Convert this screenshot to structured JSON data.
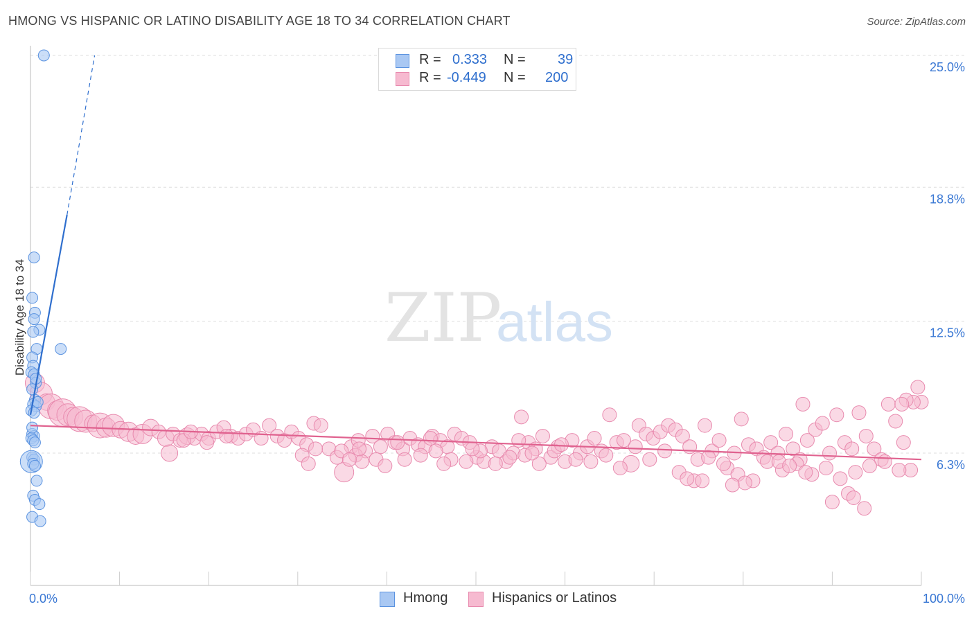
{
  "header": {
    "title": "HMONG VS HISPANIC OR LATINO DISABILITY AGE 18 TO 34 CORRELATION CHART",
    "source": "Source: ZipAtlas.com"
  },
  "legend": {
    "hmong": {
      "r_label": "R =",
      "r_value": "0.333",
      "n_label": "N =",
      "n_value": "39"
    },
    "hispanic": {
      "r_label": "R =",
      "r_value": "-0.449",
      "n_label": "N =",
      "n_value": "200"
    }
  },
  "bottom_legend": {
    "hmong": "Hmong",
    "hispanic": "Hispanics or Latinos"
  },
  "watermark": {
    "zip": "ZIP",
    "atlas": "atlas"
  },
  "colors": {
    "hmong_fill": "#a9c8f3",
    "hmong_stroke": "#5b93e0",
    "hmong_line": "#2f6fce",
    "hispanic_fill": "#f6bad0",
    "hispanic_stroke": "#e88aae",
    "hispanic_line": "#e0628f",
    "axis_label": "#3a78d4",
    "grid": "#dddddd"
  },
  "chart_data": {
    "type": "scatter",
    "title": "HMONG VS HISPANIC OR LATINO DISABILITY AGE 18 TO 34 CORRELATION CHART",
    "xlabel": "",
    "ylabel": "Disability Age 18 to 34",
    "xlim": [
      0,
      100
    ],
    "ylim": [
      0,
      26
    ],
    "x_tick_labels": [
      "0.0%",
      "100.0%"
    ],
    "y_ticks": [
      6.3,
      12.5,
      18.8,
      25.0
    ],
    "y_tick_labels": [
      "6.3%",
      "12.5%",
      "18.8%",
      "25.0%"
    ],
    "series": [
      {
        "name": "Hmong",
        "r": 0.333,
        "n": 39,
        "trend": {
          "solid": [
            [
              0,
              8.1
            ],
            [
              4.1,
              17.5
            ]
          ],
          "dashed": [
            [
              4.1,
              17.5
            ],
            [
              7.2,
              25.0
            ]
          ]
        },
        "points": [
          [
            1.5,
            25.0,
            8
          ],
          [
            0.4,
            15.5,
            8
          ],
          [
            0.2,
            13.6,
            8
          ],
          [
            0.5,
            12.9,
            8
          ],
          [
            0.4,
            12.6,
            8
          ],
          [
            1.0,
            12.1,
            8
          ],
          [
            0.3,
            12.0,
            8
          ],
          [
            3.4,
            11.2,
            8
          ],
          [
            0.7,
            11.2,
            8
          ],
          [
            0.2,
            10.8,
            8
          ],
          [
            0.3,
            10.4,
            8
          ],
          [
            0.1,
            10.1,
            8
          ],
          [
            0.4,
            10.0,
            8
          ],
          [
            0.6,
            9.6,
            8
          ],
          [
            0.2,
            9.3,
            8
          ],
          [
            0.5,
            8.8,
            8
          ],
          [
            0.3,
            8.6,
            8
          ],
          [
            0.6,
            8.5,
            8
          ],
          [
            0.1,
            8.3,
            8
          ],
          [
            0.4,
            8.2,
            8
          ],
          [
            0.2,
            7.2,
            8
          ],
          [
            0.4,
            7.1,
            8
          ],
          [
            0.1,
            7.0,
            8
          ],
          [
            0.3,
            6.9,
            8
          ],
          [
            0.5,
            6.8,
            8
          ],
          [
            0.2,
            6.1,
            8
          ],
          [
            0.4,
            6.0,
            8
          ],
          [
            0.1,
            5.9,
            16
          ],
          [
            0.3,
            5.8,
            8
          ],
          [
            0.5,
            5.7,
            8
          ],
          [
            0.7,
            5.0,
            8
          ],
          [
            0.3,
            4.3,
            8
          ],
          [
            0.5,
            4.1,
            8
          ],
          [
            1.0,
            3.9,
            8
          ],
          [
            0.2,
            3.3,
            8
          ],
          [
            1.1,
            3.1,
            8
          ],
          [
            0.6,
            9.8,
            8
          ],
          [
            0.8,
            8.7,
            8
          ],
          [
            0.2,
            7.5,
            8
          ]
        ]
      },
      {
        "name": "Hispanics or Latinos",
        "r": -0.449,
        "n": 200,
        "trend": [
          [
            0,
            7.6
          ],
          [
            100,
            6.0
          ]
        ],
        "points": [
          [
            0.5,
            9.6,
            14
          ],
          [
            1.2,
            9.1,
            16
          ],
          [
            1.8,
            8.7,
            12
          ],
          [
            2.3,
            8.5,
            18
          ],
          [
            3.0,
            8.3,
            14
          ],
          [
            3.6,
            8.2,
            20
          ],
          [
            4.2,
            8.1,
            16
          ],
          [
            4.8,
            8.0,
            14
          ],
          [
            5.5,
            7.9,
            18
          ],
          [
            6.2,
            7.8,
            16
          ],
          [
            7.0,
            7.7,
            12
          ],
          [
            7.8,
            7.6,
            18
          ],
          [
            8.5,
            7.5,
            14
          ],
          [
            9.3,
            7.6,
            16
          ],
          [
            10.1,
            7.4,
            12
          ],
          [
            11.0,
            7.3,
            14
          ],
          [
            11.8,
            7.1,
            12
          ],
          [
            12.6,
            7.2,
            14
          ],
          [
            13.5,
            7.5,
            12
          ],
          [
            14.4,
            7.3,
            10
          ],
          [
            15.2,
            7.0,
            12
          ],
          [
            16.0,
            7.2,
            10
          ],
          [
            16.8,
            6.9,
            10
          ],
          [
            17.6,
            7.1,
            12
          ],
          [
            18.4,
            7.0,
            10
          ],
          [
            19.2,
            7.2,
            10
          ],
          [
            20.0,
            7.0,
            10
          ],
          [
            20.9,
            7.3,
            10
          ],
          [
            21.7,
            7.5,
            10
          ],
          [
            22.5,
            7.1,
            10
          ],
          [
            23.3,
            7.0,
            10
          ],
          [
            24.2,
            7.2,
            10
          ],
          [
            25.0,
            7.4,
            10
          ],
          [
            25.9,
            7.0,
            10
          ],
          [
            26.8,
            7.6,
            10
          ],
          [
            27.7,
            7.1,
            10
          ],
          [
            28.5,
            6.9,
            10
          ],
          [
            29.3,
            7.3,
            10
          ],
          [
            30.1,
            7.0,
            10
          ],
          [
            31.0,
            6.7,
            10
          ],
          [
            31.8,
            7.7,
            10
          ],
          [
            32.6,
            7.6,
            10
          ],
          [
            33.5,
            6.5,
            10
          ],
          [
            34.4,
            6.1,
            10
          ],
          [
            35.2,
            5.4,
            14
          ],
          [
            36.0,
            6.6,
            10
          ],
          [
            36.8,
            6.9,
            10
          ],
          [
            37.6,
            6.4,
            10
          ],
          [
            38.4,
            7.1,
            10
          ],
          [
            39.3,
            6.6,
            10
          ],
          [
            40.1,
            7.2,
            10
          ],
          [
            40.9,
            6.8,
            10
          ],
          [
            41.8,
            6.5,
            10
          ],
          [
            42.6,
            7.0,
            10
          ],
          [
            43.5,
            6.7,
            10
          ],
          [
            44.3,
            6.6,
            10
          ],
          [
            45.1,
            7.1,
            10
          ],
          [
            46.0,
            6.9,
            10
          ],
          [
            46.8,
            6.6,
            10
          ],
          [
            47.6,
            7.2,
            10
          ],
          [
            48.4,
            7.0,
            10
          ],
          [
            49.3,
            6.8,
            10
          ],
          [
            50.1,
            6.1,
            10
          ],
          [
            50.9,
            5.9,
            10
          ],
          [
            51.8,
            6.6,
            10
          ],
          [
            52.6,
            6.4,
            10
          ],
          [
            53.4,
            5.9,
            10
          ],
          [
            54.2,
            6.3,
            10
          ],
          [
            55.1,
            8.0,
            10
          ],
          [
            55.9,
            6.8,
            10
          ],
          [
            56.7,
            6.5,
            10
          ],
          [
            57.5,
            7.1,
            10
          ],
          [
            58.4,
            6.1,
            10
          ],
          [
            59.2,
            6.6,
            10
          ],
          [
            60.0,
            5.9,
            10
          ],
          [
            60.8,
            6.9,
            10
          ],
          [
            61.7,
            6.3,
            10
          ],
          [
            62.5,
            6.6,
            10
          ],
          [
            63.3,
            7.0,
            10
          ],
          [
            64.1,
            6.4,
            10
          ],
          [
            65.0,
            8.1,
            10
          ],
          [
            65.8,
            6.8,
            10
          ],
          [
            66.6,
            6.9,
            10
          ],
          [
            67.4,
            5.8,
            12
          ],
          [
            68.3,
            7.6,
            10
          ],
          [
            69.1,
            7.2,
            10
          ],
          [
            69.9,
            7.0,
            10
          ],
          [
            70.7,
            7.3,
            10
          ],
          [
            71.6,
            7.6,
            10
          ],
          [
            72.4,
            7.4,
            10
          ],
          [
            73.2,
            7.1,
            10
          ],
          [
            74.0,
            6.6,
            10
          ],
          [
            74.9,
            6.0,
            10
          ],
          [
            75.7,
            7.6,
            10
          ],
          [
            76.5,
            6.4,
            10
          ],
          [
            77.3,
            6.9,
            10
          ],
          [
            78.2,
            5.6,
            10
          ],
          [
            79.0,
            6.3,
            10
          ],
          [
            79.8,
            7.9,
            10
          ],
          [
            80.6,
            6.7,
            10
          ],
          [
            81.5,
            6.5,
            10
          ],
          [
            82.3,
            6.1,
            10
          ],
          [
            83.1,
            6.8,
            10
          ],
          [
            83.9,
            6.3,
            10
          ],
          [
            84.8,
            7.2,
            10
          ],
          [
            85.6,
            6.5,
            10
          ],
          [
            86.4,
            6.0,
            10
          ],
          [
            87.2,
            6.9,
            10
          ],
          [
            88.1,
            7.4,
            10
          ],
          [
            88.9,
            7.7,
            10
          ],
          [
            89.7,
            6.3,
            10
          ],
          [
            90.5,
            8.1,
            10
          ],
          [
            91.4,
            6.8,
            10
          ],
          [
            92.2,
            6.5,
            10
          ],
          [
            93.0,
            8.2,
            10
          ],
          [
            93.8,
            7.1,
            10
          ],
          [
            94.7,
            6.5,
            10
          ],
          [
            95.5,
            6.0,
            10
          ],
          [
            96.3,
            8.6,
            10
          ],
          [
            97.1,
            7.8,
            10
          ],
          [
            98.0,
            6.8,
            10
          ],
          [
            98.8,
            5.5,
            10
          ],
          [
            99.6,
            9.4,
            10
          ],
          [
            100.0,
            8.7,
            10
          ],
          [
            30.5,
            6.2,
            10
          ],
          [
            31.2,
            5.8,
            10
          ],
          [
            32.0,
            6.5,
            10
          ],
          [
            36.5,
            6.2,
            10
          ],
          [
            37.2,
            5.9,
            10
          ],
          [
            38.8,
            6.0,
            10
          ],
          [
            39.8,
            5.7,
            10
          ],
          [
            42.0,
            6.0,
            10
          ],
          [
            43.8,
            6.2,
            10
          ],
          [
            45.5,
            6.4,
            10
          ],
          [
            47.2,
            6.0,
            10
          ],
          [
            48.9,
            5.9,
            10
          ],
          [
            50.5,
            6.4,
            10
          ],
          [
            52.2,
            5.8,
            10
          ],
          [
            53.8,
            6.1,
            10
          ],
          [
            55.5,
            6.2,
            10
          ],
          [
            57.1,
            5.8,
            10
          ],
          [
            58.8,
            6.4,
            10
          ],
          [
            61.2,
            6.0,
            10
          ],
          [
            62.9,
            5.9,
            10
          ],
          [
            64.6,
            6.2,
            10
          ],
          [
            66.2,
            5.6,
            10
          ],
          [
            67.9,
            6.6,
            10
          ],
          [
            69.5,
            6.0,
            10
          ],
          [
            71.2,
            6.4,
            10
          ],
          [
            72.8,
            5.4,
            10
          ],
          [
            74.5,
            5.0,
            10
          ],
          [
            76.1,
            6.1,
            10
          ],
          [
            77.8,
            5.8,
            10
          ],
          [
            79.4,
            5.3,
            10
          ],
          [
            81.1,
            5.0,
            10
          ],
          [
            82.7,
            5.9,
            10
          ],
          [
            84.4,
            5.5,
            10
          ],
          [
            86.0,
            5.8,
            10
          ],
          [
            87.7,
            5.3,
            10
          ],
          [
            89.3,
            5.6,
            10
          ],
          [
            90.9,
            5.1,
            10
          ],
          [
            92.6,
            5.4,
            10
          ],
          [
            94.2,
            5.7,
            10
          ],
          [
            95.9,
            5.9,
            10
          ],
          [
            97.5,
            5.5,
            10
          ],
          [
            99.1,
            8.7,
            10
          ],
          [
            98.3,
            8.8,
            10
          ],
          [
            97.8,
            8.6,
            10
          ],
          [
            86.7,
            8.6,
            10
          ],
          [
            84.0,
            5.9,
            10
          ],
          [
            90.0,
            4.0,
            10
          ],
          [
            93.6,
            3.7,
            10
          ],
          [
            91.8,
            4.4,
            10
          ],
          [
            92.4,
            4.2,
            10
          ],
          [
            87.0,
            5.4,
            10
          ],
          [
            85.2,
            5.7,
            10
          ],
          [
            78.8,
            4.8,
            10
          ],
          [
            80.2,
            4.9,
            10
          ],
          [
            75.4,
            5.0,
            10
          ],
          [
            73.7,
            5.1,
            10
          ],
          [
            22.0,
            7.1,
            10
          ],
          [
            19.8,
            6.8,
            10
          ],
          [
            15.6,
            6.3,
            12
          ],
          [
            17.2,
            6.9,
            10
          ],
          [
            18.0,
            7.3,
            10
          ],
          [
            34.9,
            6.4,
            10
          ],
          [
            35.8,
            6.0,
            10
          ],
          [
            36.9,
            6.5,
            10
          ],
          [
            41.2,
            6.8,
            10
          ],
          [
            44.9,
            7.0,
            10
          ],
          [
            46.4,
            5.8,
            10
          ],
          [
            49.6,
            6.5,
            10
          ],
          [
            54.8,
            6.9,
            10
          ],
          [
            56.3,
            6.3,
            10
          ],
          [
            59.6,
            6.7,
            10
          ]
        ]
      }
    ]
  }
}
